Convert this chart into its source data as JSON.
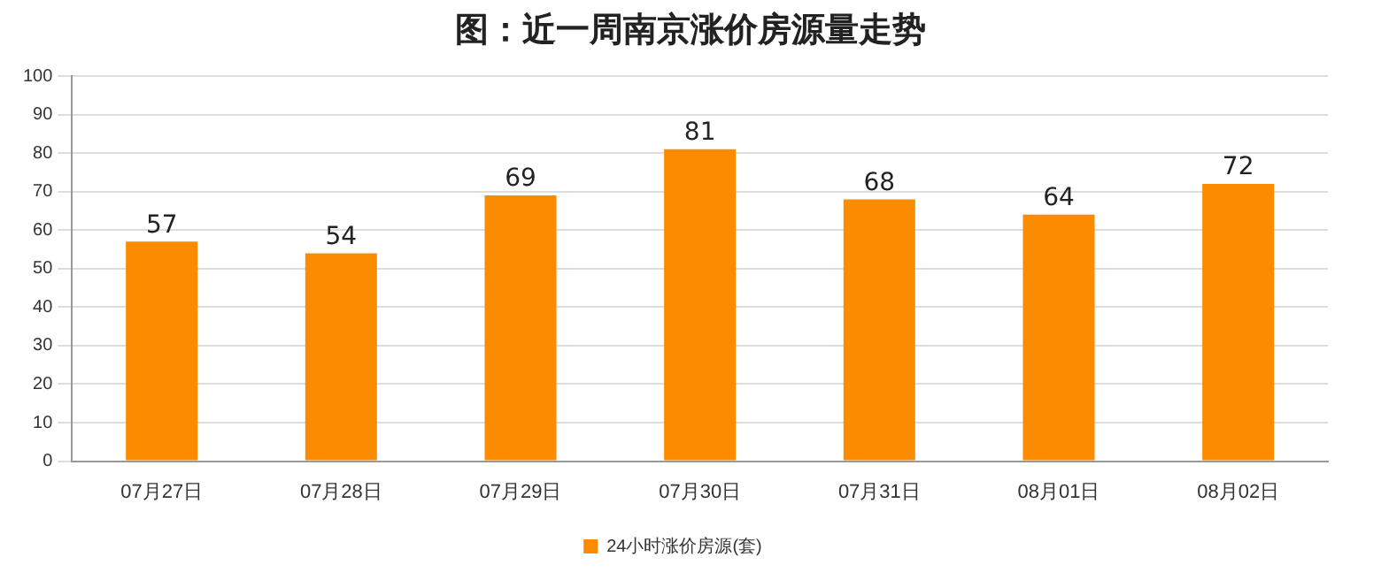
{
  "chart_data": {
    "type": "bar",
    "title": "图：近一周南京涨价房源量走势",
    "categories": [
      "07月27日",
      "07月28日",
      "07月29日",
      "07月30日",
      "07月31日",
      "08月01日",
      "08月02日"
    ],
    "series": [
      {
        "name": "24小时涨价房源(套)",
        "color": "#fb8c00",
        "values": [
          57,
          54,
          69,
          81,
          68,
          64,
          72
        ]
      }
    ],
    "ylim": [
      0,
      100
    ],
    "yticks": [
      0,
      10,
      20,
      30,
      40,
      50,
      60,
      70,
      80,
      90,
      100
    ],
    "grid": "y",
    "legend": "bottom",
    "data_labels": true
  }
}
